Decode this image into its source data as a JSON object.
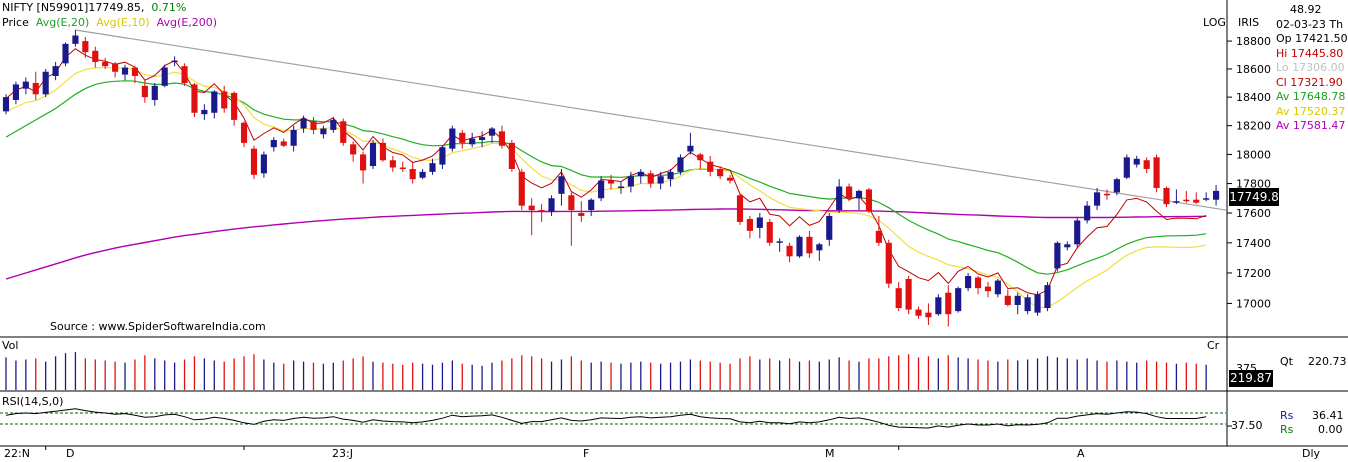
{
  "header": {
    "symbol": "NIFTY [N59901]",
    "last": "17749.85,",
    "change": "0.71%",
    "price_label": "Price",
    "avg20": "Avg(E,20)",
    "avg10": "Avg(E,10)",
    "avg200": "Avg(E,200)",
    "log": "LOG",
    "iris": "IRIS",
    "source": "Source : www.SpiderSoftwareIndia.com"
  },
  "info": {
    "top": "48.92",
    "date": "02-03-23 Th",
    "open": "Op 17421.50",
    "high": "Hi 17445.80",
    "low": "Lo 17306.00",
    "close": "Cl 17321.90",
    "av1": "Av 17648.78",
    "av2": "Av 17520.37",
    "av3": "Av 17581.47"
  },
  "price_box": "17749.8",
  "volume": {
    "label": "Vol",
    "cr": "Cr",
    "tick": "375",
    "qt": "Qt",
    "qt_value": "220.73",
    "box": "219.87"
  },
  "rsi": {
    "label": "RSI(14,S,0)",
    "tick": "37.50",
    "rs_label": "Rs",
    "rs_value": "36.41",
    "rs2_label": "Rs",
    "rs2_value": "0.00"
  },
  "x_labels": [
    "22:N",
    "D",
    "23:J",
    "F",
    "M",
    "A",
    "Dly"
  ],
  "colors": {
    "up": "#1a1a8c",
    "down": "#e01010",
    "ema10": "#f0e040",
    "ema20": "#20b020",
    "ema200": "#b000b0",
    "trend": "#a0a0a0",
    "ema_red": "#c00000"
  },
  "chart_data": {
    "type": "candlestick",
    "y_ticks": [
      18800,
      18600,
      18400,
      18200,
      18000,
      17800,
      17600,
      17400,
      17200,
      17000
    ],
    "ylim": [
      16860,
      18880
    ],
    "y_scale": "log",
    "x_tick_labels": [
      "22:N",
      "D",
      "23:J",
      "F",
      "M",
      "A"
    ],
    "ohlc": [
      [
        18300,
        18420,
        18280,
        18400
      ],
      [
        18380,
        18510,
        18350,
        18490
      ],
      [
        18460,
        18540,
        18420,
        18510
      ],
      [
        18500,
        18580,
        18380,
        18420
      ],
      [
        18420,
        18600,
        18400,
        18580
      ],
      [
        18550,
        18650,
        18520,
        18620
      ],
      [
        18640,
        18790,
        18620,
        18780
      ],
      [
        18780,
        18880,
        18760,
        18840
      ],
      [
        18800,
        18830,
        18680,
        18720
      ],
      [
        18730,
        18760,
        18610,
        18650
      ],
      [
        18650,
        18680,
        18600,
        18620
      ],
      [
        18640,
        18650,
        18540,
        18580
      ],
      [
        18560,
        18630,
        18520,
        18610
      ],
      [
        18610,
        18620,
        18500,
        18550
      ],
      [
        18480,
        18520,
        18360,
        18400
      ],
      [
        18380,
        18500,
        18340,
        18480
      ],
      [
        18480,
        18630,
        18470,
        18610
      ],
      [
        18650,
        18690,
        18620,
        18660
      ],
      [
        18620,
        18640,
        18480,
        18500
      ],
      [
        18490,
        18500,
        18260,
        18290
      ],
      [
        18280,
        18350,
        18240,
        18310
      ],
      [
        18290,
        18450,
        18250,
        18440
      ],
      [
        18440,
        18480,
        18290,
        18320
      ],
      [
        18430,
        18440,
        18200,
        18240
      ],
      [
        18220,
        18230,
        18050,
        18080
      ],
      [
        18040,
        18060,
        17830,
        17860
      ],
      [
        17870,
        18020,
        17840,
        18000
      ],
      [
        18050,
        18120,
        18020,
        18100
      ],
      [
        18090,
        18110,
        18050,
        18060
      ],
      [
        18060,
        18200,
        18020,
        18170
      ],
      [
        18180,
        18270,
        18150,
        18250
      ],
      [
        18230,
        18260,
        18140,
        18170
      ],
      [
        18140,
        18200,
        18110,
        18180
      ],
      [
        18170,
        18260,
        18150,
        18240
      ],
      [
        18230,
        18250,
        18060,
        18080
      ],
      [
        18070,
        18090,
        17950,
        18000
      ],
      [
        18000,
        18020,
        17800,
        17890
      ],
      [
        17920,
        18100,
        17900,
        18080
      ],
      [
        18080,
        18110,
        17950,
        17960
      ],
      [
        17960,
        17990,
        17880,
        17910
      ],
      [
        17910,
        17950,
        17880,
        17900
      ],
      [
        17900,
        17940,
        17800,
        17830
      ],
      [
        17840,
        17900,
        17830,
        17880
      ],
      [
        17880,
        17970,
        17860,
        17940
      ],
      [
        17930,
        18060,
        17900,
        18050
      ],
      [
        18040,
        18200,
        18020,
        18180
      ],
      [
        18150,
        18170,
        18040,
        18080
      ],
      [
        18070,
        18150,
        18050,
        18110
      ],
      [
        18100,
        18160,
        18050,
        18120
      ],
      [
        18130,
        18190,
        18080,
        18180
      ],
      [
        18160,
        18200,
        18040,
        18060
      ],
      [
        18080,
        18100,
        17880,
        17900
      ],
      [
        17880,
        17900,
        17620,
        17650
      ],
      [
        17650,
        17700,
        17450,
        17620
      ],
      [
        17620,
        17660,
        17540,
        17610
      ],
      [
        17610,
        17720,
        17580,
        17700
      ],
      [
        17730,
        17900,
        17650,
        17850
      ],
      [
        17720,
        17740,
        17380,
        17620
      ],
      [
        17600,
        17680,
        17540,
        17580
      ],
      [
        17620,
        17700,
        17580,
        17690
      ],
      [
        17700,
        17850,
        17680,
        17820
      ],
      [
        17820,
        17860,
        17760,
        17800
      ],
      [
        17770,
        17810,
        17730,
        17780
      ],
      [
        17780,
        17880,
        17740,
        17850
      ],
      [
        17850,
        17900,
        17800,
        17880
      ],
      [
        17870,
        17890,
        17770,
        17800
      ],
      [
        17800,
        17880,
        17760,
        17850
      ],
      [
        17830,
        17900,
        17780,
        17880
      ],
      [
        17880,
        18000,
        17860,
        17980
      ],
      [
        18020,
        18150,
        18000,
        18060
      ],
      [
        18000,
        18010,
        17900,
        17960
      ],
      [
        17950,
        17990,
        17850,
        17880
      ],
      [
        17900,
        17920,
        17830,
        17850
      ],
      [
        17840,
        17860,
        17800,
        17820
      ],
      [
        17720,
        17730,
        17520,
        17540
      ],
      [
        17560,
        17580,
        17430,
        17480
      ],
      [
        17500,
        17600,
        17430,
        17570
      ],
      [
        17540,
        17560,
        17380,
        17400
      ],
      [
        17400,
        17430,
        17340,
        17410
      ],
      [
        17380,
        17400,
        17270,
        17310
      ],
      [
        17310,
        17450,
        17300,
        17440
      ],
      [
        17440,
        17480,
        17300,
        17330
      ],
      [
        17350,
        17400,
        17280,
        17390
      ],
      [
        17420,
        17600,
        17380,
        17580
      ],
      [
        17620,
        17830,
        17600,
        17780
      ],
      [
        17780,
        17800,
        17680,
        17700
      ],
      [
        17700,
        17760,
        17620,
        17750
      ],
      [
        17760,
        17770,
        17600,
        17610
      ],
      [
        17480,
        17580,
        17380,
        17400
      ],
      [
        17400,
        17420,
        17100,
        17130
      ],
      [
        17100,
        17140,
        16950,
        16970
      ],
      [
        17160,
        17180,
        16930,
        16960
      ],
      [
        16960,
        16980,
        16900,
        16920
      ],
      [
        16940,
        17000,
        16860,
        16910
      ],
      [
        16930,
        17060,
        16920,
        17040
      ],
      [
        17070,
        17120,
        16850,
        16930
      ],
      [
        16950,
        17110,
        16940,
        17100
      ],
      [
        17100,
        17200,
        17080,
        17180
      ],
      [
        17170,
        17180,
        17060,
        17100
      ],
      [
        17110,
        17140,
        17040,
        17080
      ],
      [
        17060,
        17160,
        17040,
        17150
      ],
      [
        17050,
        17090,
        16980,
        16990
      ],
      [
        16990,
        17070,
        16930,
        17050
      ],
      [
        16950,
        17060,
        16930,
        17040
      ],
      [
        16940,
        17080,
        16920,
        17060
      ],
      [
        16970,
        17140,
        16950,
        17120
      ],
      [
        17230,
        17410,
        17210,
        17400
      ],
      [
        17370,
        17410,
        17350,
        17390
      ],
      [
        17390,
        17570,
        17370,
        17550
      ],
      [
        17550,
        17680,
        17530,
        17650
      ],
      [
        17650,
        17770,
        17620,
        17740
      ],
      [
        17730,
        17760,
        17690,
        17720
      ],
      [
        17740,
        17840,
        17720,
        17830
      ],
      [
        17840,
        18000,
        17830,
        17980
      ],
      [
        17930,
        17990,
        17910,
        17970
      ],
      [
        17960,
        17980,
        17870,
        17900
      ],
      [
        17980,
        18000,
        17740,
        17770
      ],
      [
        17770,
        17780,
        17640,
        17660
      ],
      [
        17680,
        17760,
        17660,
        17680
      ],
      [
        17690,
        17750,
        17670,
        17680
      ],
      [
        17690,
        17740,
        17660,
        17670
      ],
      [
        17690,
        17740,
        17680,
        17700
      ],
      [
        17690,
        17790,
        17650,
        17750
      ]
    ],
    "ema10": [
      18300,
      18329,
      18362,
      18374,
      18411,
      18449,
      18510,
      18568,
      18597,
      18607,
      18611,
      18605,
      18606,
      18596,
      18560,
      18546,
      18558,
      18576,
      18562,
      18512,
      18476,
      18469,
      18442,
      18405,
      18345,
      18257,
      18210,
      18190,
      18166,
      18166,
      18181,
      18178,
      18178,
      18189,
      18168,
      18137,
      18092,
      18089,
      18065,
      18037,
      18013,
      17980,
      17962,
      17958,
      17975,
      18012,
      18025,
      18041,
      18055,
      18077,
      18074,
      18042,
      17970,
      17906,
      17852,
      17824,
      17829,
      17791,
      17754,
      17742,
      17756,
      17764,
      17767,
      17782,
      17800,
      17800,
      17808,
      17821,
      17851,
      17890,
      17904,
      17901,
      17893,
      17883,
      17839,
      17791,
      17750,
      17704,
      17670,
      17638,
      17629,
      17623,
      17614,
      17606,
      17606,
      17602,
      17598,
      17581,
      17550,
      17498,
      17436,
      17377,
      17337,
      17309,
      17285,
      17253,
      17242,
      17226,
      17208,
      17187,
      17171,
      17126,
      17075,
      17019,
      16972,
      16976,
      17011,
      17057,
      17104,
      17148,
      17182,
      17218,
      17272,
      17317,
      17348,
      17369,
      17373,
      17372,
      17371,
      17369,
      17372,
      17386
    ],
    "ema20": [
      18120,
      18160,
      18200,
      18240,
      18280,
      18320,
      18370,
      18420,
      18460,
      18490,
      18505,
      18512,
      18516,
      18513,
      18500,
      18490,
      18490,
      18500,
      18492,
      18460,
      18440,
      18432,
      18416,
      18394,
      18360,
      18310,
      18280,
      18262,
      18245,
      18240,
      18240,
      18233,
      18227,
      18228,
      18213,
      18193,
      18165,
      18158,
      18142,
      18123,
      18106,
      18083,
      18067,
      18060,
      18062,
      18074,
      18075,
      18079,
      18082,
      18090,
      18087,
      18069,
      18026,
      17985,
      17948,
      17923,
      17917,
      17890,
      17860,
      17845,
      17845,
      17845,
      17843,
      17848,
      17855,
      17853,
      17856,
      17860,
      17875,
      17895,
      17900,
      17898,
      17894,
      17889,
      17864,
      17835,
      17811,
      17782,
      17758,
      17733,
      17722,
      17712,
      17701,
      17694,
      17700,
      17700,
      17705,
      17695,
      17672,
      17636,
      17593,
      17550,
      17516,
      17485,
      17458,
      17425,
      17408,
      17389,
      17370,
      17349,
      17334,
      17305,
      17271,
      17234,
      17201,
      17192,
      17202,
      17221,
      17247,
      17274,
      17297,
      17322,
      17358,
      17391,
      17416,
      17435,
      17441,
      17446,
      17447,
      17448,
      17451,
      17461
    ],
    "ema200": [
      17160,
      17180,
      17200,
      17220,
      17240,
      17260,
      17280,
      17300,
      17318,
      17335,
      17350,
      17365,
      17378,
      17390,
      17402,
      17414,
      17426,
      17438,
      17448,
      17457,
      17466,
      17475,
      17484,
      17492,
      17500,
      17507,
      17513,
      17520,
      17526,
      17532,
      17538,
      17544,
      17549,
      17554,
      17559,
      17563,
      17567,
      17571,
      17575,
      17578,
      17581,
      17584,
      17587,
      17590,
      17593,
      17596,
      17599,
      17601,
      17604,
      17607,
      17609,
      17611,
      17611,
      17610,
      17610,
      17610,
      17611,
      17611,
      17611,
      17611,
      17612,
      17613,
      17614,
      17615,
      17617,
      17618,
      17619,
      17620,
      17622,
      17624,
      17625,
      17626,
      17627,
      17628,
      17627,
      17626,
      17625,
      17623,
      17622,
      17620,
      17618,
      17617,
      17616,
      17615,
      17615,
      17615,
      17615,
      17614,
      17613,
      17611,
      17609,
      17606,
      17603,
      17600,
      17597,
      17594,
      17591,
      17588,
      17586,
      17583,
      17580,
      17578,
      17576,
      17573,
      17571,
      17570,
      17570,
      17570,
      17570,
      17570,
      17570,
      17570,
      17571,
      17572,
      17573,
      17574,
      17575,
      17575,
      17576,
      17576,
      17577,
      17578
    ],
    "volume": [
      310,
      280,
      290,
      300,
      270,
      320,
      350,
      360,
      300,
      290,
      280,
      270,
      260,
      290,
      330,
      300,
      280,
      260,
      290,
      320,
      300,
      280,
      270,
      300,
      320,
      340,
      290,
      260,
      250,
      280,
      270,
      260,
      250,
      260,
      280,
      300,
      320,
      270,
      260,
      250,
      240,
      260,
      250,
      240,
      260,
      280,
      250,
      240,
      230,
      260,
      280,
      300,
      330,
      320,
      300,
      270,
      290,
      320,
      280,
      260,
      270,
      260,
      250,
      260,
      270,
      260,
      250,
      260,
      270,
      290,
      280,
      270,
      260,
      250,
      300,
      320,
      290,
      300,
      280,
      300,
      270,
      280,
      270,
      290,
      310,
      280,
      270,
      300,
      300,
      320,
      330,
      340,
      310,
      320,
      300,
      330,
      310,
      300,
      290,
      280,
      270,
      290,
      280,
      290,
      300,
      320,
      310,
      300,
      290,
      300,
      280,
      270,
      280,
      270,
      260,
      280,
      270,
      260,
      250,
      260,
      250,
      240
    ],
    "rsi": [
      0.55,
      0.6,
      0.62,
      0.6,
      0.64,
      0.68,
      0.72,
      0.76,
      0.7,
      0.65,
      0.62,
      0.58,
      0.6,
      0.55,
      0.48,
      0.5,
      0.56,
      0.58,
      0.5,
      0.4,
      0.42,
      0.48,
      0.44,
      0.38,
      0.3,
      0.25,
      0.35,
      0.4,
      0.38,
      0.44,
      0.48,
      0.45,
      0.46,
      0.5,
      0.42,
      0.38,
      0.32,
      0.4,
      0.36,
      0.34,
      0.33,
      0.3,
      0.33,
      0.38,
      0.45,
      0.55,
      0.5,
      0.52,
      0.53,
      0.56,
      0.48,
      0.38,
      0.28,
      0.34,
      0.34,
      0.4,
      0.46,
      0.38,
      0.36,
      0.4,
      0.46,
      0.45,
      0.44,
      0.48,
      0.5,
      0.46,
      0.48,
      0.5,
      0.55,
      0.58,
      0.5,
      0.46,
      0.44,
      0.43,
      0.33,
      0.3,
      0.35,
      0.3,
      0.3,
      0.27,
      0.33,
      0.3,
      0.33,
      0.4,
      0.48,
      0.44,
      0.46,
      0.4,
      0.32,
      0.22,
      0.16,
      0.15,
      0.14,
      0.13,
      0.2,
      0.16,
      0.22,
      0.26,
      0.23,
      0.23,
      0.26,
      0.2,
      0.24,
      0.23,
      0.25,
      0.3,
      0.45,
      0.45,
      0.52,
      0.56,
      0.6,
      0.58,
      0.62,
      0.66,
      0.65,
      0.6,
      0.5,
      0.44,
      0.44,
      0.44,
      0.44,
      0.5
    ]
  }
}
